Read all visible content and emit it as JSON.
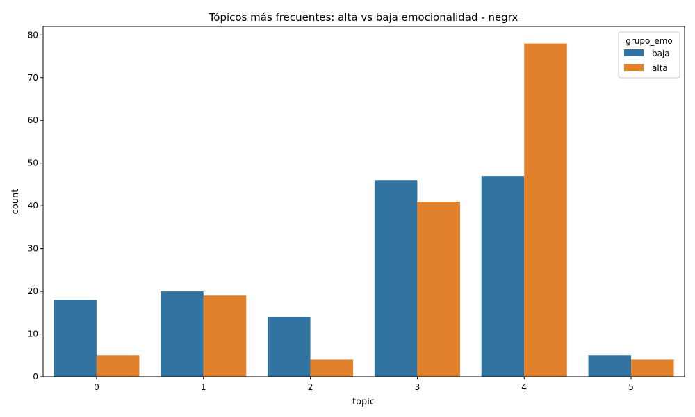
{
  "chart_data": {
    "type": "bar",
    "title": "Tópicos más frecuentes: alta vs baja emocionalidad - negrx",
    "xlabel": "topic",
    "ylabel": "count",
    "categories": [
      "0",
      "1",
      "2",
      "3",
      "4",
      "5"
    ],
    "ylim": [
      0,
      82
    ],
    "yticks": [
      0,
      10,
      20,
      30,
      40,
      50,
      60,
      70,
      80
    ],
    "legend": {
      "title": "grupo_emo",
      "placement": "top-right"
    },
    "series": [
      {
        "name": "baja",
        "color": "#3274a1",
        "values": [
          18,
          20,
          14,
          46,
          47,
          5
        ]
      },
      {
        "name": "alta",
        "color": "#e1812c",
        "values": [
          5,
          19,
          4,
          41,
          78,
          4
        ]
      }
    ]
  }
}
